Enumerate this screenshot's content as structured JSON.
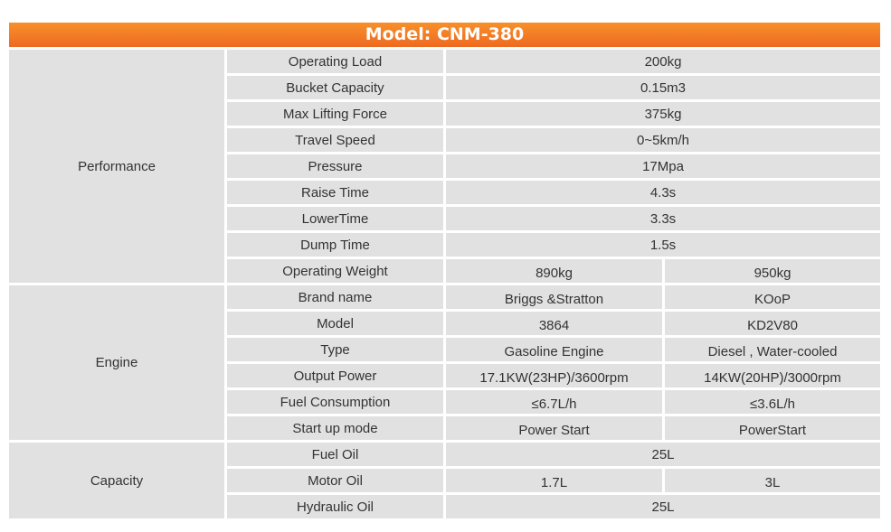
{
  "header": {
    "label": "Model:",
    "model": "CNM-380"
  },
  "sections": [
    {
      "name": "Performance",
      "rows": [
        {
          "param": "Operating Load",
          "values": [
            "200kg"
          ]
        },
        {
          "param": "Bucket Capacity",
          "values": [
            "0.15m3"
          ]
        },
        {
          "param": "Max Lifting Force",
          "values": [
            "375kg"
          ]
        },
        {
          "param": "Travel Speed",
          "values": [
            "0~5km/h"
          ]
        },
        {
          "param": "Pressure",
          "values": [
            "17Mpa"
          ]
        },
        {
          "param": "Raise Time",
          "values": [
            "4.3s"
          ]
        },
        {
          "param": "LowerTime",
          "values": [
            "3.3s"
          ]
        },
        {
          "param": "Dump Time",
          "values": [
            "1.5s"
          ]
        },
        {
          "param": "Operating Weight",
          "values": [
            "890kg",
            "950kg"
          ]
        }
      ]
    },
    {
      "name": "Engine",
      "rows": [
        {
          "param": "Brand name",
          "values": [
            "Briggs &Stratton",
            "KOoP"
          ]
        },
        {
          "param": "Model",
          "values": [
            "3864",
            "KD2V80"
          ]
        },
        {
          "param": "Type",
          "values": [
            "Gasoline Engine",
            "Diesel , Water-cooled"
          ]
        },
        {
          "param": "Output Power",
          "values": [
            "17.1KW(23HP)/3600rpm",
            "14KW(20HP)/3000rpm"
          ]
        },
        {
          "param": "Fuel Consumption",
          "values": [
            "≤6.7L/h",
            "≤3.6L/h"
          ]
        },
        {
          "param": "Start up mode",
          "values": [
            "Power Start",
            "PowerStart"
          ]
        }
      ]
    },
    {
      "name": "Capacity",
      "rows": [
        {
          "param": "Fuel Oil",
          "values": [
            "25L"
          ]
        },
        {
          "param": "Motor Oil",
          "values": [
            "1.7L",
            "3L"
          ]
        },
        {
          "param": "Hydraulic Oil",
          "values": [
            "25L"
          ]
        }
      ]
    }
  ]
}
